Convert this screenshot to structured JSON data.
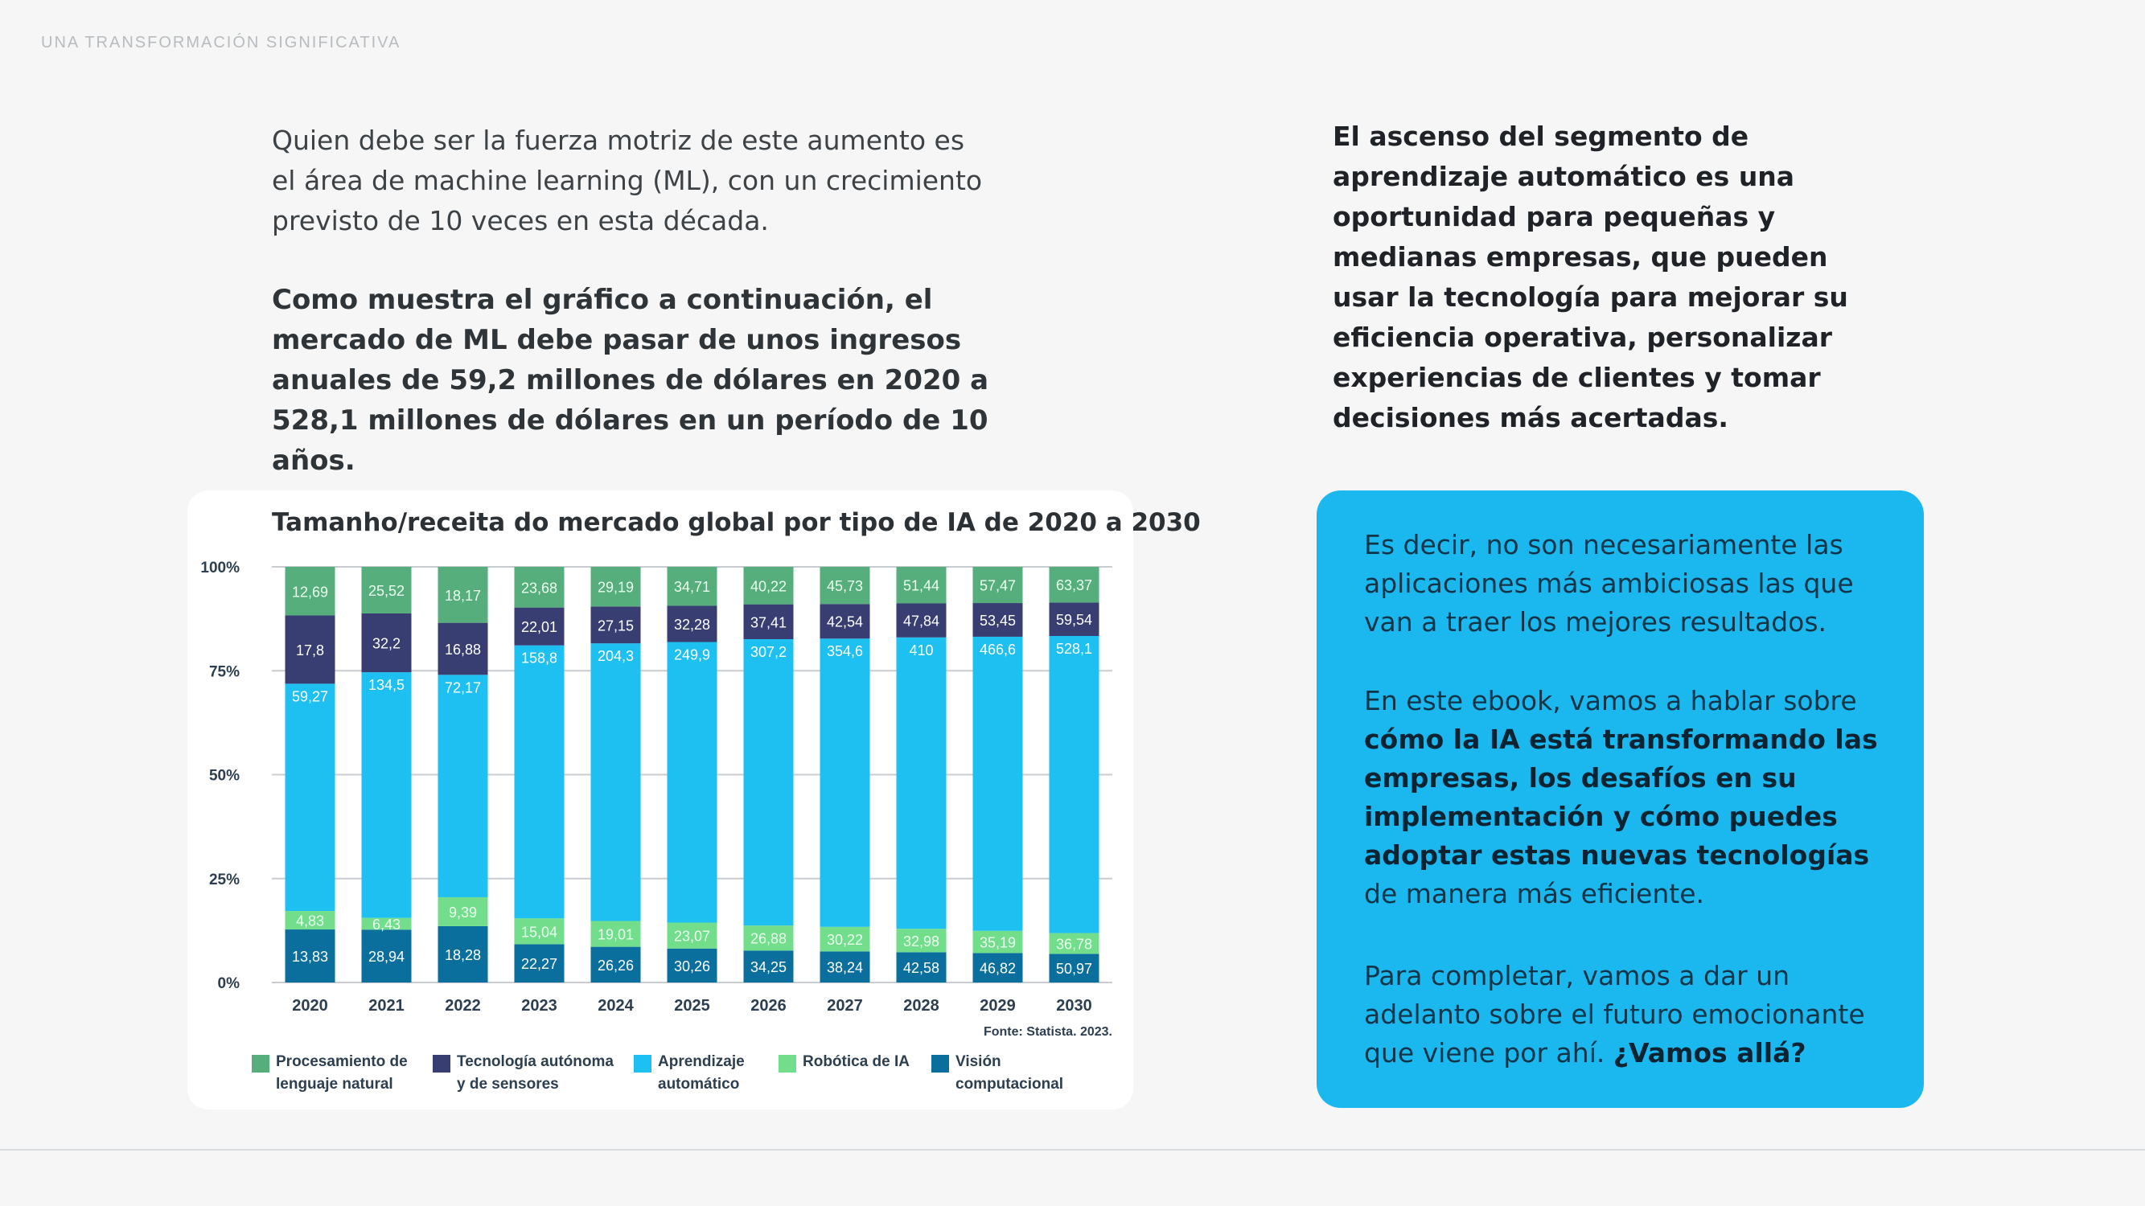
{
  "eyebrow": "UNA TRANSFORMACIÓN SIGNIFICATIVA",
  "intro_paragraph": "Quien debe ser la fuerza motriz de este aumento es el área de machine learning (ML), con un crecimiento previsto de 10 veces en esta década.",
  "highlight_paragraph": "Como muestra el gráfico a continuación, el mercado de ML debe pasar de unos ingresos anuales de 59,2 millones de dólares en 2020 a 528,1 millones de dólares en un período de 10 años.",
  "right_paragraph": "El ascenso del segmento de aprendizaje automático es una oportunidad para pequeñas y medianas empresas, que pueden usar la tecnología para mejorar su eficiencia operativa, personalizar experiencias de clientes y tomar decisiones más acertadas.",
  "callout": {
    "p1": "Es decir, no son necesariamente las aplicaciones más ambiciosas las que van a traer los mejores resultados.",
    "p2_start": "En este ebook, vamos a hablar sobre ",
    "p2_bold": "cómo la IA está transformando las empresas, los desafíos en su implementación y cómo puedes adoptar estas nuevas tecnologías",
    "p2_end": " de manera más eficiente.",
    "p3_start": "Para completar, vamos a dar un adelanto sobre el futuro emocionante que viene por ahí. ",
    "p3_bold": "¿Vamos allá?",
    "bg_color": "#1bb8f0"
  },
  "chart_data": {
    "type": "bar",
    "stacked": "percent",
    "title": "Tamanho/receita do mercado global por tipo de IA de 2020 a 2030",
    "source": "Fonte: Statista. 2023.",
    "categories": [
      "2020",
      "2021",
      "2022",
      "2023",
      "2024",
      "2025",
      "2026",
      "2027",
      "2028",
      "2029",
      "2030"
    ],
    "y_ticks": [
      "0%",
      "25%",
      "50%",
      "75%",
      "100%"
    ],
    "ylim": [
      0,
      100
    ],
    "grid": true,
    "legend_position": "bottom",
    "series": [
      {
        "name": "Visión computacional",
        "color": "#0a6f9c",
        "values": [
          13.83,
          28.94,
          18.28,
          22.27,
          26.26,
          30.26,
          34.25,
          38.24,
          42.58,
          46.82,
          50.97
        ],
        "labels": [
          "13,83",
          "28,94",
          "18,28",
          "22,27",
          "26,26",
          "30,26",
          "34,25",
          "38,24",
          "42,58",
          "46,82",
          "50,97"
        ]
      },
      {
        "name": "Robótica de IA",
        "color": "#72de8c",
        "values": [
          4.83,
          6.43,
          9.39,
          15.04,
          19.01,
          23.07,
          26.88,
          30.22,
          32.98,
          35.19,
          36.78
        ],
        "labels": [
          "4,83",
          "6,43",
          "9,39",
          "15,04",
          "19,01",
          "23,07",
          "26,88",
          "30,22",
          "32,98",
          "35,19",
          "36,78"
        ]
      },
      {
        "name": "Aprendizaje automático",
        "color": "#1ec0f2",
        "values": [
          59.27,
          134.5,
          72.17,
          158.8,
          204.3,
          249.9,
          307.2,
          354.6,
          410,
          466.6,
          528.1
        ],
        "labels": [
          "59,27",
          "134,5",
          "72,17",
          "158,8",
          "204,3",
          "249,9",
          "307,2",
          "354,6",
          "410",
          "466,6",
          "528,1"
        ]
      },
      {
        "name": "Tecnología autónoma y de sensores",
        "color": "#383d72",
        "values": [
          17.8,
          32.2,
          16.88,
          22.01,
          27.15,
          32.28,
          37.41,
          42.54,
          47.84,
          53.45,
          59.54
        ],
        "labels": [
          "17,8",
          "32,2",
          "16,88",
          "22,01",
          "27,15",
          "32,28",
          "37,41",
          "42,54",
          "47,84",
          "53,45",
          "59,54"
        ]
      },
      {
        "name": "Procesamiento de lenguaje natural",
        "color": "#55ae7b",
        "values": [
          12.69,
          25.52,
          18.17,
          23.68,
          29.19,
          34.71,
          40.22,
          45.73,
          51.44,
          57.47,
          63.37
        ],
        "labels": [
          "12,69",
          "25,52",
          "18,17",
          "23,68",
          "29,19",
          "34,71",
          "40,22",
          "45,73",
          "51,44",
          "57,47",
          "63,37"
        ]
      }
    ],
    "legend": [
      {
        "line1": "Procesamiento de",
        "line2": "lenguaje natural",
        "color": "#55ae7b"
      },
      {
        "line1": "Tecnología autónoma",
        "line2": "y de sensores",
        "color": "#383d72"
      },
      {
        "line1": "Aprendizaje",
        "line2": "automático",
        "color": "#1ec0f2"
      },
      {
        "line1": "Robótica de IA",
        "line2": "",
        "color": "#72de8c"
      },
      {
        "line1": "Visión",
        "line2": "computacional",
        "color": "#0a6f9c"
      }
    ]
  }
}
